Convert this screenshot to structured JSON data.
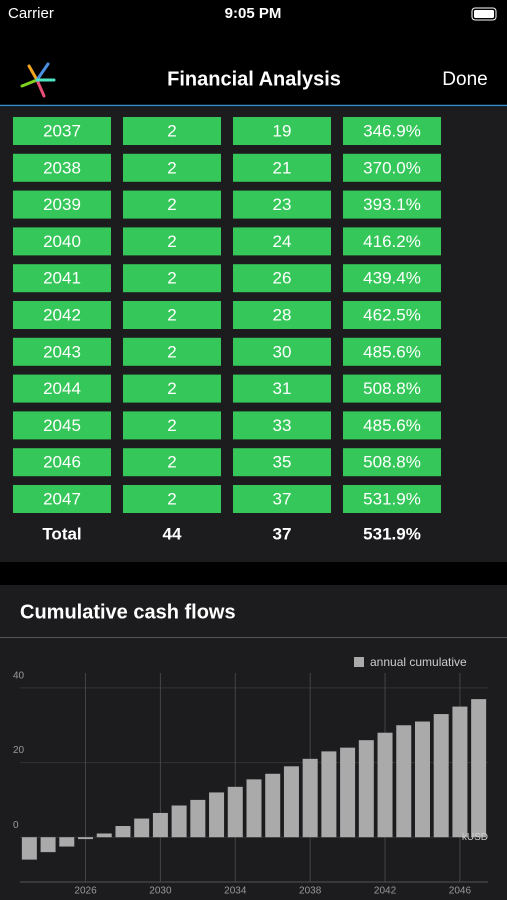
{
  "status_bar": {
    "carrier": "Carrier",
    "time": "9:05 PM"
  },
  "nav": {
    "title": "Financial Analysis",
    "done": "Done"
  },
  "table": {
    "rows": [
      [
        "2037",
        "2",
        "19",
        "346.9%"
      ],
      [
        "2038",
        "2",
        "21",
        "370.0%"
      ],
      [
        "2039",
        "2",
        "23",
        "393.1%"
      ],
      [
        "2040",
        "2",
        "24",
        "416.2%"
      ],
      [
        "2041",
        "2",
        "26",
        "439.4%"
      ],
      [
        "2042",
        "2",
        "28",
        "462.5%"
      ],
      [
        "2043",
        "2",
        "30",
        "485.6%"
      ],
      [
        "2044",
        "2",
        "31",
        "508.8%"
      ],
      [
        "2045",
        "2",
        "33",
        "485.6%"
      ],
      [
        "2046",
        "2",
        "35",
        "508.8%"
      ],
      [
        "2047",
        "2",
        "37",
        "531.9%"
      ]
    ],
    "total": [
      "Total",
      "44",
      "37",
      "531.9%"
    ]
  },
  "chart_data": {
    "type": "bar",
    "title": "Cumulative cash flows",
    "x": [
      2023,
      2024,
      2025,
      2026,
      2027,
      2028,
      2029,
      2030,
      2031,
      2032,
      2033,
      2034,
      2035,
      2036,
      2037,
      2038,
      2039,
      2040,
      2041,
      2042,
      2043,
      2044,
      2045,
      2046,
      2047
    ],
    "series": [
      {
        "name": "annual cumulative",
        "color": "#aaaaaa",
        "values": [
          -6,
          -4,
          -2.5,
          -0.5,
          1,
          3,
          5,
          6.5,
          8.5,
          10,
          12,
          13.5,
          15.5,
          17,
          19,
          21,
          23,
          24,
          26,
          28,
          30,
          31,
          33,
          35,
          37
        ]
      }
    ],
    "xlim": [
      2022.5,
      2047.5
    ],
    "xticks": [
      2026,
      2030,
      2034,
      2038,
      2042,
      2046
    ],
    "ylim": [
      -12,
      44
    ],
    "yticks": [
      0,
      20,
      40
    ],
    "unit_label": "kUSD",
    "grid": true,
    "legend": "top-right"
  }
}
